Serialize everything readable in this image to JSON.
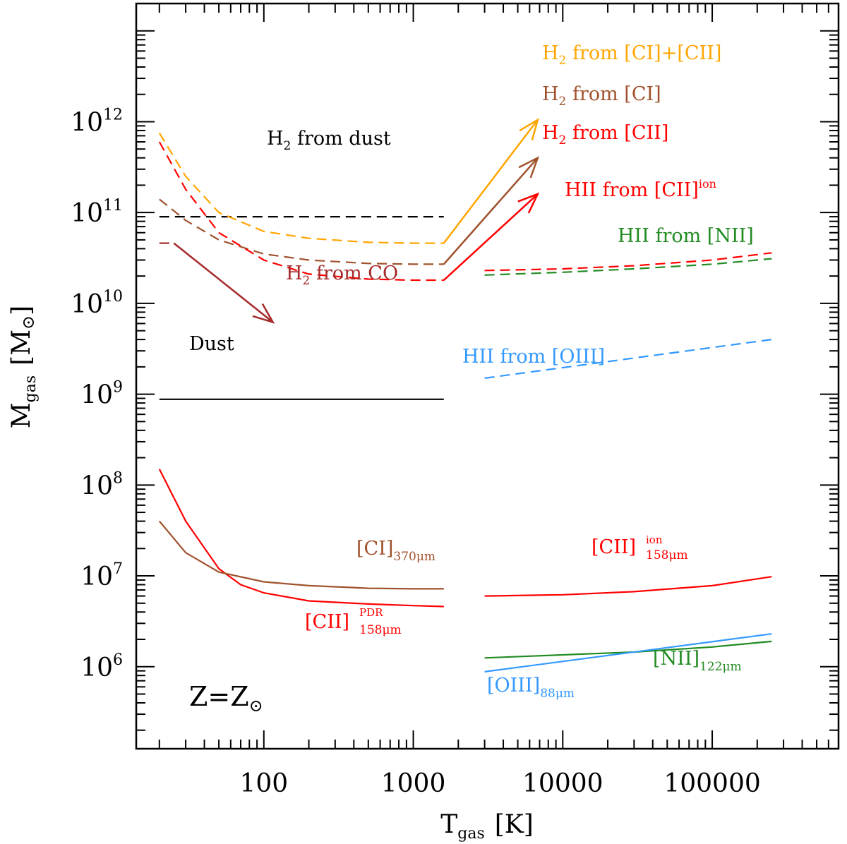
{
  "chart_data": {
    "type": "line",
    "xscale": "log",
    "yscale": "log",
    "xlim": [
      14,
      700000
    ],
    "ylim": [
      125000,
      20000000000000
    ],
    "xlabel": {
      "main": "T",
      "sub": "gas",
      "unit": "[K]"
    },
    "ylabel": {
      "main": "M",
      "sub": "gas",
      "unit": "[M",
      "unit_sym": "⊙",
      "unit_close": "]"
    },
    "x_ticks": [
      {
        "value": 100,
        "label": "100"
      },
      {
        "value": 1000,
        "label": "1000"
      },
      {
        "value": 10000,
        "label": "10000"
      },
      {
        "value": 100000,
        "label": "100000"
      }
    ],
    "y_ticks": [
      {
        "value": 1000000,
        "base": "10",
        "exp": "6"
      },
      {
        "value": 10000000,
        "base": "10",
        "exp": "7"
      },
      {
        "value": 100000000,
        "base": "10",
        "exp": "8"
      },
      {
        "value": 1000000000,
        "base": "10",
        "exp": "9"
      },
      {
        "value": 10000000000,
        "base": "10",
        "exp": "10"
      },
      {
        "value": 100000000000,
        "base": "10",
        "exp": "11"
      },
      {
        "value": 1000000000000,
        "base": "10",
        "exp": "12"
      }
    ],
    "panel_label": {
      "main": "Z=Z",
      "sub": "⊙"
    },
    "series": [
      {
        "name": "H2 from dust",
        "color": "#000000",
        "dash": true,
        "x": [
          20,
          1600
        ],
        "y": [
          90000000000,
          90000000000
        ]
      },
      {
        "name": "H2 from [CI]+[CII]",
        "color": "#ffa500",
        "dash": true,
        "x": [
          20,
          30,
          50,
          100,
          200,
          500,
          1000,
          1600
        ],
        "y": [
          750000000000,
          250000000000,
          100000000000,
          62000000000,
          52000000000,
          47000000000,
          46000000000,
          46000000000
        ]
      },
      {
        "name": "H2 from [CI]",
        "color": "#a0522d",
        "dash": true,
        "x": [
          20,
          30,
          50,
          100,
          200,
          500,
          1000,
          1600
        ],
        "y": [
          140000000000,
          82000000000,
          50000000000,
          35000000000,
          30000000000,
          27500000000,
          27000000000,
          27000000000
        ]
      },
      {
        "name": "H2 from [CII]",
        "color": "#ff0000",
        "dash": true,
        "x": [
          20,
          30,
          50,
          100,
          200,
          500,
          1000,
          1600
        ],
        "y": [
          600000000000,
          180000000000,
          60000000000,
          30000000000,
          21000000000,
          18500000000,
          18000000000,
          18000000000
        ]
      },
      {
        "name": "H2 from CO",
        "color": "#a52a2a",
        "dash": true,
        "x": [
          20,
          25
        ],
        "y": [
          46000000000,
          46000000000
        ]
      },
      {
        "name": "HII from [CII]ion",
        "color": "#ff0000",
        "dash": true,
        "x": [
          3000,
          10000,
          30000,
          100000,
          250000
        ],
        "y": [
          23000000000,
          24000000000,
          26000000000,
          30000000000,
          36000000000
        ]
      },
      {
        "name": "HII from [NII]",
        "color": "#228b22",
        "dash": true,
        "x": [
          3000,
          10000,
          30000,
          100000,
          250000
        ],
        "y": [
          20500000000,
          22000000000,
          24000000000,
          27000000000,
          31000000000
        ]
      },
      {
        "name": "HII from [OIII]",
        "color": "#3399ff",
        "dash": true,
        "x": [
          3000,
          250000
        ],
        "y": [
          1500000000,
          4000000000
        ]
      },
      {
        "name": "Dust",
        "color": "#000000",
        "dash": false,
        "x": [
          20,
          1600
        ],
        "y": [
          880000000,
          880000000
        ]
      },
      {
        "name": "[CII]PDR 158um",
        "color": "#ff0000",
        "dash": false,
        "x": [
          20,
          30,
          50,
          70,
          100,
          200,
          500,
          1000,
          1600
        ],
        "y": [
          150000000,
          40000000,
          12000000,
          8000000,
          6500000,
          5300000,
          4900000,
          4700000,
          4600000
        ]
      },
      {
        "name": "[CI] 370um",
        "color": "#a0522d",
        "dash": false,
        "x": [
          20,
          30,
          50,
          100,
          200,
          500,
          1000,
          1600
        ],
        "y": [
          40000000,
          18000000,
          11000000,
          8600000,
          7800000,
          7300000,
          7200000,
          7200000
        ]
      },
      {
        "name": "[CII]ion 158um",
        "color": "#ff0000",
        "dash": false,
        "x": [
          3000,
          10000,
          30000,
          100000,
          250000
        ],
        "y": [
          6000000,
          6200000,
          6700000,
          7800000,
          9800000
        ]
      },
      {
        "name": "[NII] 122um",
        "color": "#228b22",
        "dash": false,
        "x": [
          3000,
          30000,
          100000,
          250000
        ],
        "y": [
          1250000,
          1450000,
          1650000,
          1900000
        ]
      },
      {
        "name": "[OIII] 88um",
        "color": "#3399ff",
        "dash": false,
        "x": [
          3000,
          250000
        ],
        "y": [
          880000,
          2300000
        ]
      }
    ],
    "arrows": [
      {
        "name": "H2 from [CI]+[CII]",
        "color": "#ffa500",
        "from": [
          1600,
          46000000000
        ],
        "to": [
          6800,
          1050000000000
        ]
      },
      {
        "name": "H2 from [CI]",
        "color": "#a0522d",
        "from": [
          1600,
          27000000000
        ],
        "to": [
          6800,
          400000000000
        ]
      },
      {
        "name": "H2 from [CII]",
        "color": "#ff0000",
        "from": [
          1600,
          18000000000
        ],
        "to": [
          6800,
          160000000000
        ]
      },
      {
        "name": "H2 from CO",
        "color": "#a52a2a",
        "from": [
          25,
          46000000000
        ],
        "to": [
          115,
          6200000000
        ]
      }
    ],
    "annotations": [
      {
        "id": "h2-dust",
        "color": "#000000",
        "main": "H",
        "sub": "2",
        "rest": " from dust"
      },
      {
        "id": "h2-cicii",
        "color": "#ffa500",
        "main": "H",
        "sub": "2",
        "rest": " from [CI]+[CII]"
      },
      {
        "id": "h2-ci",
        "color": "#a0522d",
        "main": "H",
        "sub": "2",
        "rest": " from [CI]"
      },
      {
        "id": "h2-cii",
        "color": "#ff0000",
        "main": "H",
        "sub": "2",
        "rest": " from [CII]"
      },
      {
        "id": "h2-co",
        "color": "#a52a2a",
        "main": "H",
        "sub": "2",
        "rest": " from CO"
      },
      {
        "id": "hii-ciiion",
        "color": "#ff0000",
        "main": "HII from [CII]",
        "sup": "ion"
      },
      {
        "id": "hii-nii",
        "color": "#228b22",
        "main": "HII from [NII]"
      },
      {
        "id": "hii-oiii",
        "color": "#3399ff",
        "main": "HII from [OIII]"
      },
      {
        "id": "dust",
        "color": "#000000",
        "main": "Dust"
      },
      {
        "id": "ci370",
        "color": "#a0522d",
        "main": "[CI]",
        "sub": "370μm"
      },
      {
        "id": "ciipdr",
        "color": "#ff0000",
        "main": "[CII]",
        "sup": "PDR",
        "sub": "158μm"
      },
      {
        "id": "ciiion158",
        "color": "#ff0000",
        "main": "[CII]",
        "sup": "ion",
        "sub": "158μm"
      },
      {
        "id": "nii122",
        "color": "#228b22",
        "main": "[NII]",
        "sub": "122μm"
      },
      {
        "id": "oiii88",
        "color": "#3399ff",
        "main": "[OIII]",
        "sub": "88μm"
      }
    ]
  }
}
